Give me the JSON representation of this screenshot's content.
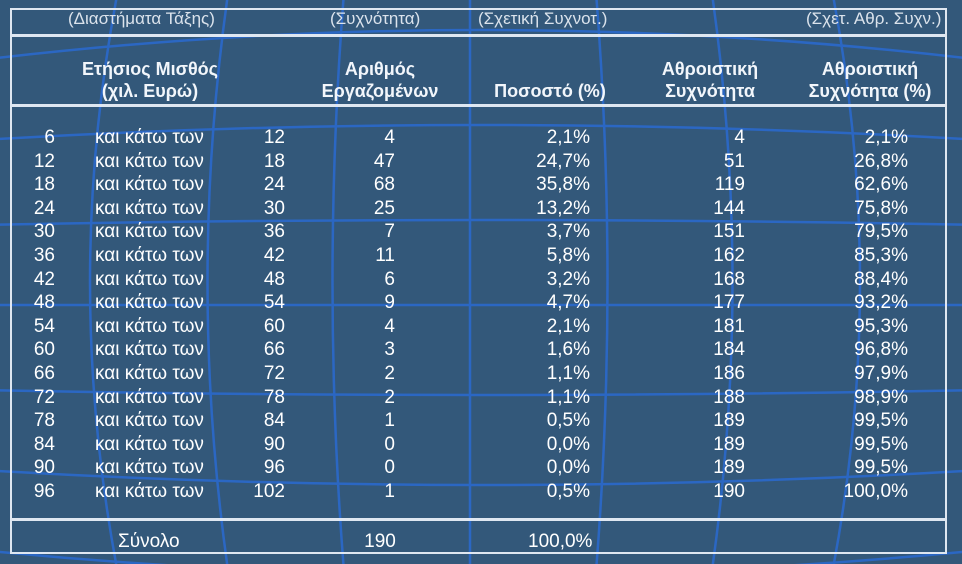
{
  "subheaders": {
    "intervals": "(Διαστήματα Τάξης)",
    "frequency": "(Συχνότητα)",
    "relative": "(Σχετική Συχνοτ.)",
    "cum_relative": "(Σχετ. Αθρ. Συχν.)"
  },
  "headers": {
    "salary_line1": "Ετήσιος Μισθός",
    "salary_line2": "(χιλ. Ευρώ)",
    "employees_line1": "Αριθμός",
    "employees_line2": "Εργαζομένων",
    "percent": "Ποσοστό (%)",
    "cum_line1": "Αθροιστική",
    "cum_line2": "Συχνότητα",
    "cum_pct_line1": "Αθροιστική",
    "cum_pct_line2": "Συχνότητα (%)"
  },
  "rows": [
    {
      "from": "6",
      "label": "και κάτω των",
      "to": "12",
      "count": "4",
      "pct": "2,1%",
      "cum": "4",
      "cum_pct": "2,1%"
    },
    {
      "from": "12",
      "label": "και κάτω των",
      "to": "18",
      "count": "47",
      "pct": "24,7%",
      "cum": "51",
      "cum_pct": "26,8%"
    },
    {
      "from": "18",
      "label": "και κάτω των",
      "to": "24",
      "count": "68",
      "pct": "35,8%",
      "cum": "119",
      "cum_pct": "62,6%"
    },
    {
      "from": "24",
      "label": "και κάτω των",
      "to": "30",
      "count": "25",
      "pct": "13,2%",
      "cum": "144",
      "cum_pct": "75,8%"
    },
    {
      "from": "30",
      "label": "και κάτω των",
      "to": "36",
      "count": "7",
      "pct": "3,7%",
      "cum": "151",
      "cum_pct": "79,5%"
    },
    {
      "from": "36",
      "label": "και κάτω των",
      "to": "42",
      "count": "11",
      "pct": "5,8%",
      "cum": "162",
      "cum_pct": "85,3%"
    },
    {
      "from": "42",
      "label": "και κάτω των",
      "to": "48",
      "count": "6",
      "pct": "3,2%",
      "cum": "168",
      "cum_pct": "88,4%"
    },
    {
      "from": "48",
      "label": "και κάτω των",
      "to": "54",
      "count": "9",
      "pct": "4,7%",
      "cum": "177",
      "cum_pct": "93,2%"
    },
    {
      "from": "54",
      "label": "και κάτω των",
      "to": "60",
      "count": "4",
      "pct": "2,1%",
      "cum": "181",
      "cum_pct": "95,3%"
    },
    {
      "from": "60",
      "label": "και κάτω των",
      "to": "66",
      "count": "3",
      "pct": "1,6%",
      "cum": "184",
      "cum_pct": "96,8%"
    },
    {
      "from": "66",
      "label": "και κάτω των",
      "to": "72",
      "count": "2",
      "pct": "1,1%",
      "cum": "186",
      "cum_pct": "97,9%"
    },
    {
      "from": "72",
      "label": "και κάτω των",
      "to": "78",
      "count": "2",
      "pct": "1,1%",
      "cum": "188",
      "cum_pct": "98,9%"
    },
    {
      "from": "78",
      "label": "και κάτω των",
      "to": "84",
      "count": "1",
      "pct": "0,5%",
      "cum": "189",
      "cum_pct": "99,5%"
    },
    {
      "from": "84",
      "label": "και κάτω των",
      "to": "90",
      "count": "0",
      "pct": "0,0%",
      "cum": "189",
      "cum_pct": "99,5%"
    },
    {
      "from": "90",
      "label": "και κάτω των",
      "to": "96",
      "count": "0",
      "pct": "0,0%",
      "cum": "189",
      "cum_pct": "99,5%"
    },
    {
      "from": "96",
      "label": "και κάτω των",
      "to": "102",
      "count": "1",
      "pct": "0,5%",
      "cum": "190",
      "cum_pct": "100,0%"
    }
  ],
  "total": {
    "label": "Σύνολο",
    "count": "190",
    "pct": "100,0%"
  },
  "colors": {
    "background": "#33587a",
    "grid_lines": "#2a6ad0",
    "frame": "#dfe7f1",
    "text": "#ffffff"
  }
}
